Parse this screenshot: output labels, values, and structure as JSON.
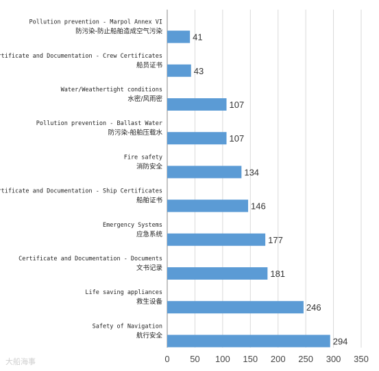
{
  "chart_data": {
    "type": "bar",
    "orientation": "horizontal",
    "categories": [
      {
        "en": "Pollution prevention - Marpol Annex VI",
        "zh": "防污染-防止船舶造成空气污染"
      },
      {
        "en": "Certificate and Documentation - Crew Certificates",
        "zh": "船员证书"
      },
      {
        "en": "Water/Weathertight conditions",
        "zh": "水密/风雨密"
      },
      {
        "en": "Pollution prevention - Ballast Water",
        "zh": "防污染-船舶压载水"
      },
      {
        "en": "Fire safety",
        "zh": "消防安全"
      },
      {
        "en": "Certificate and Documentation - Ship Certificates",
        "zh": "船舶证书"
      },
      {
        "en": "Emergency Systems",
        "zh": "应急系统"
      },
      {
        "en": "Certificate and Documentation - Documents",
        "zh": "文书记录"
      },
      {
        "en": "Life saving appliances",
        "zh": "救生设备"
      },
      {
        "en": "Safety of Navigation",
        "zh": "航行安全"
      }
    ],
    "values": [
      41,
      43,
      107,
      107,
      134,
      146,
      177,
      181,
      246,
      294
    ],
    "xlim": [
      0,
      350
    ],
    "xticks": [
      0,
      50,
      100,
      150,
      200,
      250,
      300,
      350
    ],
    "grid": true,
    "bar_color": "#5b9bd5",
    "data_labels": true
  },
  "watermark": "大船海事"
}
